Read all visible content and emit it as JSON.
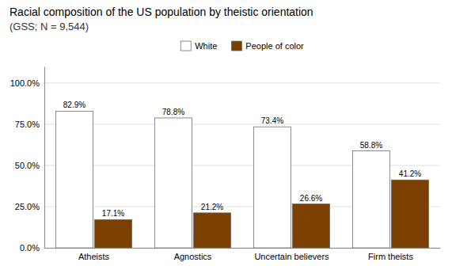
{
  "chart_data": {
    "type": "bar",
    "title": "Racial composition of the US population by theistic orientation",
    "subtitle": "(GSS; N = 9,544)",
    "categories": [
      "Atheists",
      "Agnostics",
      "Uncertain believers",
      "Firm theists"
    ],
    "series": [
      {
        "name": "White",
        "color": "#ffffff",
        "values": [
          82.9,
          78.8,
          73.4,
          58.8
        ],
        "value_labels": [
          "82.9%",
          "78.8%",
          "73.4%",
          "58.8%"
        ]
      },
      {
        "name": "People of color",
        "color": "#7b4000",
        "values": [
          17.1,
          21.2,
          26.6,
          41.2
        ],
        "value_labels": [
          "17.1%",
          "21.2%",
          "26.6%",
          "41.2%"
        ]
      }
    ],
    "ylim": [
      0,
      110
    ],
    "yticks": [
      {
        "value": 0.0,
        "label": "0.0%"
      },
      {
        "value": 25.0,
        "label": "25.0%"
      },
      {
        "value": 50.0,
        "label": "50.0%"
      },
      {
        "value": 75.0,
        "label": "75.0%"
      },
      {
        "value": 100.0,
        "label": "100.0%"
      }
    ],
    "grid": true,
    "legend": "top",
    "data_labels": true
  }
}
